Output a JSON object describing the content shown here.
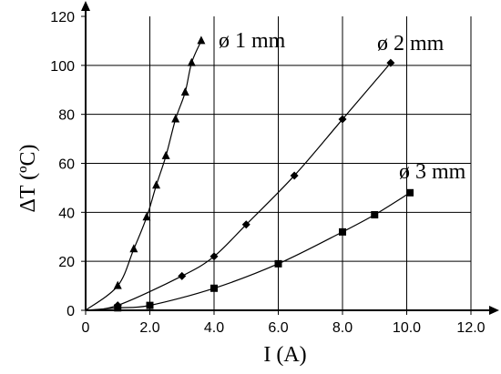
{
  "chart_data": {
    "type": "line",
    "xlabel": "I (A)",
    "ylabel": "ΔT (ºC)",
    "xlim": [
      0,
      12
    ],
    "ylim": [
      0,
      120
    ],
    "x_ticks": [
      "0",
      "2.0",
      "4.0",
      "6.0",
      "8.0",
      "10.0",
      "12.0"
    ],
    "y_ticks": [
      "0",
      "20",
      "40",
      "60",
      "80",
      "100",
      "120"
    ],
    "grid": true,
    "legend": "inline labels",
    "series": [
      {
        "name": "ø 1 mm",
        "marker": "triangle",
        "x": [
          0,
          1.0,
          1.5,
          1.9,
          2.2,
          2.5,
          2.8,
          3.1,
          3.3,
          3.6
        ],
        "y": [
          0,
          10,
          25,
          38,
          51,
          63,
          78,
          89,
          101,
          110
        ]
      },
      {
        "name": "ø 2 mm",
        "marker": "diamond",
        "x": [
          0,
          1.0,
          3.0,
          4.0,
          5.0,
          6.5,
          8.0,
          9.5
        ],
        "y": [
          0,
          2,
          14,
          22,
          35,
          55,
          78,
          101
        ]
      },
      {
        "name": "ø 3 mm",
        "marker": "square",
        "x": [
          0,
          1.0,
          2.0,
          4.0,
          6.0,
          8.0,
          9.0,
          10.1
        ],
        "y": [
          0,
          1,
          2,
          9,
          19,
          32,
          39,
          48
        ]
      }
    ]
  }
}
